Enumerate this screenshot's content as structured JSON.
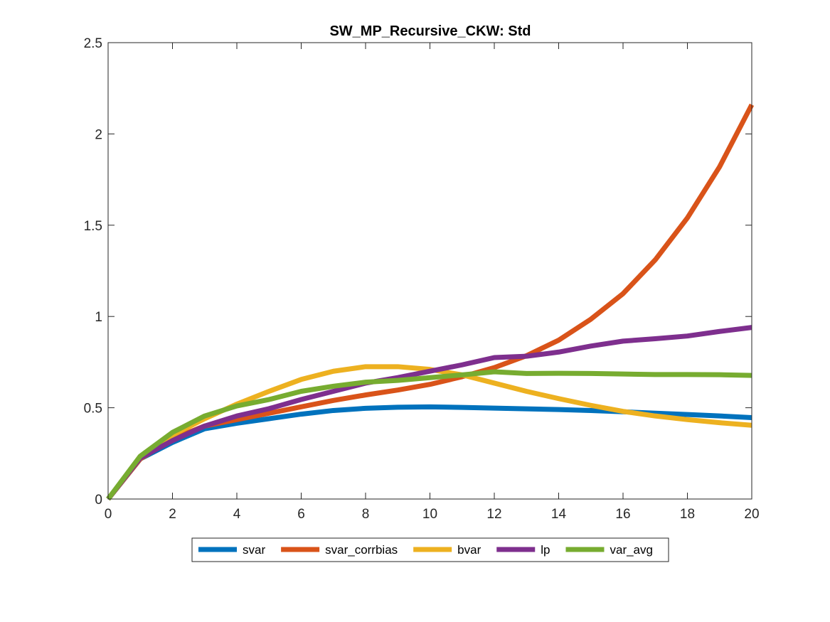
{
  "chart_data": {
    "type": "line",
    "title": "SW_MP_Recursive_CKW: Std",
    "xlabel": "",
    "ylabel": "",
    "xlim": [
      0,
      20
    ],
    "ylim": [
      0,
      2.5
    ],
    "x_ticks": [
      0,
      2,
      4,
      6,
      8,
      10,
      12,
      14,
      16,
      18,
      20
    ],
    "y_ticks": [
      0,
      0.5,
      1,
      1.5,
      2,
      2.5
    ],
    "x_tick_labels": [
      "0",
      "2",
      "4",
      "6",
      "8",
      "10",
      "12",
      "14",
      "16",
      "18",
      "20"
    ],
    "y_tick_labels": [
      "0",
      "0.5",
      "1",
      "1.5",
      "2",
      "2.5"
    ],
    "grid": false,
    "legend_position": "bottom-outside",
    "x": [
      0,
      1,
      2,
      3,
      4,
      5,
      6,
      7,
      8,
      9,
      10,
      11,
      12,
      13,
      14,
      15,
      16,
      17,
      18,
      19,
      20
    ],
    "series": [
      {
        "name": "svar",
        "color": "#0072BD",
        "values": [
          0.0,
          0.22,
          0.31,
          0.385,
          0.415,
          0.44,
          0.465,
          0.485,
          0.497,
          0.503,
          0.505,
          0.502,
          0.498,
          0.494,
          0.49,
          0.485,
          0.478,
          0.47,
          0.463,
          0.455,
          0.446
        ]
      },
      {
        "name": "svar_corrbias",
        "color": "#D95319",
        "values": [
          0.0,
          0.22,
          0.33,
          0.4,
          0.435,
          0.47,
          0.505,
          0.54,
          0.57,
          0.597,
          0.628,
          0.67,
          0.72,
          0.785,
          0.87,
          0.985,
          1.125,
          1.31,
          1.54,
          1.82,
          2.16
        ]
      },
      {
        "name": "bvar",
        "color": "#EDB120",
        "values": [
          0.0,
          0.225,
          0.35,
          0.44,
          0.52,
          0.59,
          0.655,
          0.7,
          0.725,
          0.725,
          0.71,
          0.68,
          0.635,
          0.59,
          0.55,
          0.513,
          0.48,
          0.455,
          0.435,
          0.418,
          0.404
        ]
      },
      {
        "name": "lp",
        "color": "#7E2F8E",
        "values": [
          0.0,
          0.225,
          0.32,
          0.4,
          0.455,
          0.495,
          0.545,
          0.59,
          0.635,
          0.665,
          0.7,
          0.735,
          0.775,
          0.782,
          0.805,
          0.838,
          0.865,
          0.878,
          0.893,
          0.918,
          0.94
        ]
      },
      {
        "name": "var_avg",
        "color": "#77AC30",
        "values": [
          0.0,
          0.235,
          0.365,
          0.455,
          0.51,
          0.545,
          0.59,
          0.618,
          0.64,
          0.65,
          0.665,
          0.68,
          0.697,
          0.688,
          0.689,
          0.688,
          0.685,
          0.682,
          0.682,
          0.681,
          0.677
        ]
      }
    ]
  }
}
